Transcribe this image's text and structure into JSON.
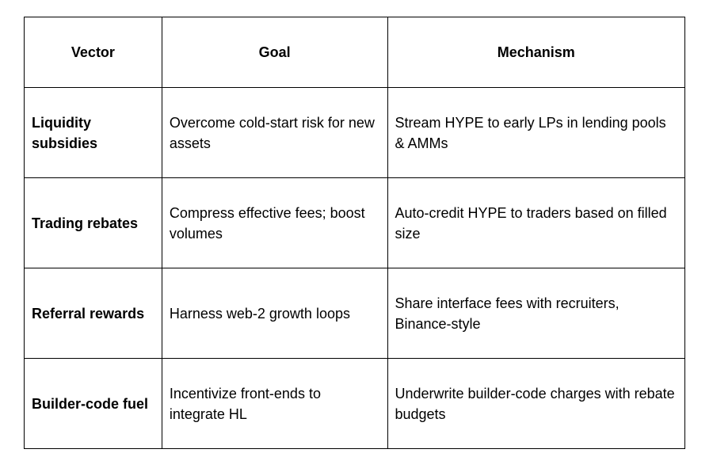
{
  "table": {
    "headers": [
      "Vector",
      "Goal",
      "Mechanism"
    ],
    "rows": [
      {
        "vector": "Liquidity subsidies",
        "goal": "Overcome cold-start risk for new assets",
        "mechanism": "Stream HYPE to early LPs in lending pools & AMMs"
      },
      {
        "vector": "Trading rebates",
        "goal": "Compress effective fees; boost volumes",
        "mechanism": "Auto-credit HYPE to traders based on filled size"
      },
      {
        "vector": "Referral rewards",
        "goal": "Harness web-2 growth loops",
        "mechanism": "Share interface fees with recruiters, Binance-style"
      },
      {
        "vector": "Builder-code fuel",
        "goal": "Incentivize front-ends to integrate HL",
        "mechanism": "Underwrite builder-code charges with rebate budgets"
      }
    ]
  }
}
